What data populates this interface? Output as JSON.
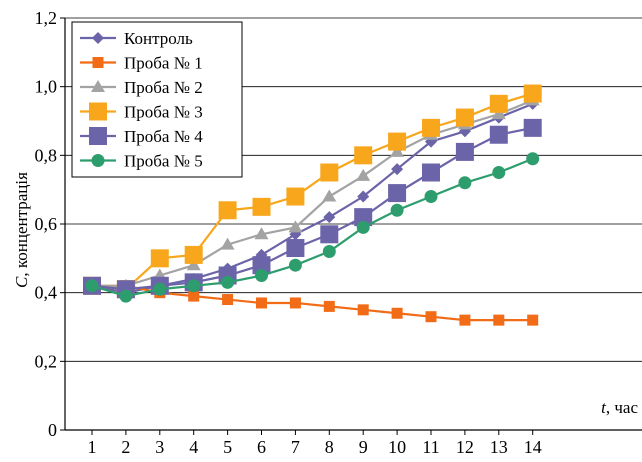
{
  "chart_data": {
    "type": "line",
    "xlabel_var": "t",
    "xlabel_unit": ", час",
    "ylabel_var": "C",
    "ylabel_unit": ", концентрація",
    "ylim": [
      0,
      1.2
    ],
    "yticks": [
      0,
      0.2,
      0.4,
      0.6,
      0.8,
      1.0,
      1.2
    ],
    "ytick_labels": [
      "0",
      "0,2",
      "0,4",
      "0,6",
      "0,8",
      "1,0",
      "1,2"
    ],
    "x": [
      1,
      2,
      3,
      4,
      5,
      6,
      7,
      8,
      9,
      10,
      11,
      12,
      13,
      14
    ],
    "grid": "horizontal",
    "legend_position": "top-left",
    "series": [
      {
        "name": "Контроль",
        "color": "#6b64a8",
        "marker": "diamond",
        "values": [
          0.42,
          0.4,
          0.42,
          0.44,
          0.47,
          0.51,
          0.57,
          0.62,
          0.68,
          0.76,
          0.84,
          0.87,
          0.91,
          0.95
        ]
      },
      {
        "name": "Проба № 1",
        "color": "#f26b16",
        "marker": "square-small",
        "values": [
          0.42,
          0.42,
          0.4,
          0.39,
          0.38,
          0.37,
          0.37,
          0.36,
          0.35,
          0.34,
          0.33,
          0.32,
          0.32,
          0.32
        ]
      },
      {
        "name": "Проба № 2",
        "color": "#a3a3a3",
        "marker": "triangle",
        "values": [
          0.42,
          0.42,
          0.45,
          0.48,
          0.54,
          0.57,
          0.59,
          0.68,
          0.74,
          0.81,
          0.86,
          0.89,
          0.92,
          0.96
        ]
      },
      {
        "name": "Проба № 3",
        "color": "#f8a61b",
        "marker": "square",
        "values": [
          0.42,
          0.41,
          0.5,
          0.51,
          0.64,
          0.65,
          0.68,
          0.75,
          0.8,
          0.84,
          0.88,
          0.91,
          0.95,
          0.98
        ]
      },
      {
        "name": "Проба № 4",
        "color": "#6b64a8",
        "marker": "square",
        "values": [
          0.42,
          0.41,
          0.42,
          0.43,
          0.45,
          0.48,
          0.53,
          0.57,
          0.62,
          0.69,
          0.75,
          0.81,
          0.86,
          0.88
        ]
      },
      {
        "name": "Проба № 5",
        "color": "#2e9d6e",
        "marker": "circle",
        "values": [
          0.42,
          0.39,
          0.41,
          0.42,
          0.43,
          0.45,
          0.48,
          0.52,
          0.59,
          0.64,
          0.68,
          0.72,
          0.75,
          0.79
        ]
      }
    ]
  }
}
